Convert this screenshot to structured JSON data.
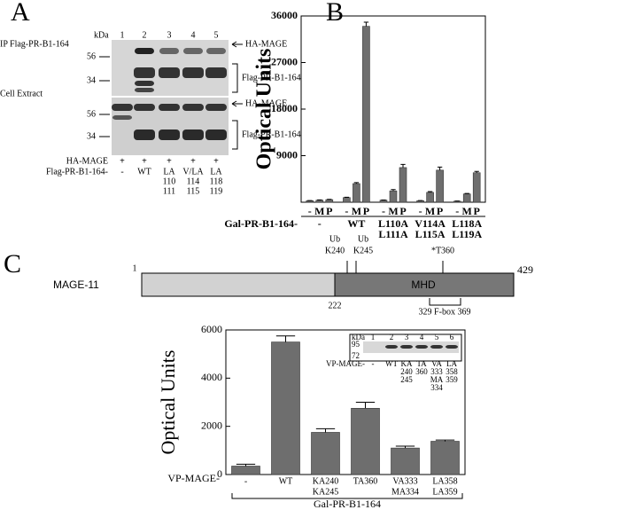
{
  "panel_a": {
    "letter": "A",
    "kda": "kDa",
    "lanes": [
      "1",
      "2",
      "3",
      "4",
      "5"
    ],
    "ip_label": "IP Flag-PR-B1-164",
    "cell_label": "Cell Extract",
    "ip_markers": [
      "56",
      "34"
    ],
    "cell_markers": [
      "56",
      "34"
    ],
    "band_labels": [
      "HA-MAGE",
      "Flag-PR-B1-164",
      "HA-MAGE",
      "Flag-PR-B1-164"
    ],
    "ha_row": {
      "label": "HA-MAGE",
      "marks": [
        "+",
        "+",
        "+",
        "+",
        "+"
      ]
    },
    "flag_row": {
      "label": "Flag-PR-B1-164-",
      "marks": [
        [
          "-"
        ],
        [
          "WT"
        ],
        [
          "LA",
          "110",
          "111"
        ],
        [
          "V/LA",
          "114",
          "115"
        ],
        [
          "LA",
          "118",
          "119"
        ]
      ]
    }
  },
  "chart_data": [
    {
      "type": "bar",
      "panel_letter": "B",
      "y_label": "Optical Units",
      "x_label": "Gal-PR-B1-164-",
      "categories": [
        [
          "-"
        ],
        [
          "WT"
        ],
        [
          "L110A",
          "L111A"
        ],
        [
          "V114A",
          "L115A"
        ],
        [
          "L118A",
          "L119A"
        ]
      ],
      "series": [
        {
          "name": "-",
          "color": "#6e6e6e",
          "values": [
            300,
            900,
            400,
            300,
            200
          ],
          "errors": [
            30,
            60,
            30,
            30,
            30
          ]
        },
        {
          "name": "M",
          "color": "#6e6e6e",
          "values": [
            400,
            3600,
            2200,
            1900,
            1600
          ],
          "errors": [
            40,
            200,
            250,
            150,
            100
          ]
        },
        {
          "name": "P",
          "color": "#6e6e6e",
          "values": [
            500,
            34000,
            6700,
            6200,
            5700
          ],
          "errors": [
            50,
            800,
            600,
            600,
            250
          ]
        }
      ],
      "ylim": [
        0,
        36000
      ],
      "yticks": [
        9000,
        18000,
        27000,
        36000
      ]
    },
    {
      "type": "bar",
      "panel_letter": "C",
      "y_label": "Optical Units",
      "x_label": "VP-MAGE-",
      "group_label": "Gal-PR-B1-164",
      "categories": [
        [
          "-"
        ],
        [
          "WT"
        ],
        [
          "KA240",
          "KA245"
        ],
        [
          "TA360"
        ],
        [
          "VA333",
          "MA334"
        ],
        [
          "LA358",
          "LA359"
        ]
      ],
      "values": [
        350,
        5500,
        1750,
        2750,
        1100,
        1380
      ],
      "errors": [
        80,
        250,
        150,
        250,
        80,
        50
      ],
      "color": "#6e6e6e",
      "ylim": [
        0,
        6000
      ],
      "yticks": [
        0,
        2000,
        4000,
        6000
      ]
    }
  ],
  "domain_map": {
    "protein": "MAGE-11",
    "start": "1",
    "end": "429",
    "boundary": "222",
    "domain": "MHD",
    "fbox": "329 F-box 369",
    "sites": [
      {
        "mod": "Ub",
        "site": "K240"
      },
      {
        "mod": "Ub",
        "site": "K245"
      },
      {
        "site": "*T360"
      }
    ]
  },
  "inset_blot": {
    "kda": "kDa",
    "lanes": [
      "1",
      "2",
      "3",
      "4",
      "5",
      "6"
    ],
    "markers": [
      "95",
      "72"
    ],
    "row_label": "VP-MAGE-",
    "lane_labels": [
      [
        "-"
      ],
      [
        "WT"
      ],
      [
        "KA",
        "240",
        "245"
      ],
      [
        "TA",
        "360"
      ],
      [
        "VA",
        "333",
        "MA",
        "334"
      ],
      [
        "LA",
        "358",
        "359"
      ]
    ]
  }
}
